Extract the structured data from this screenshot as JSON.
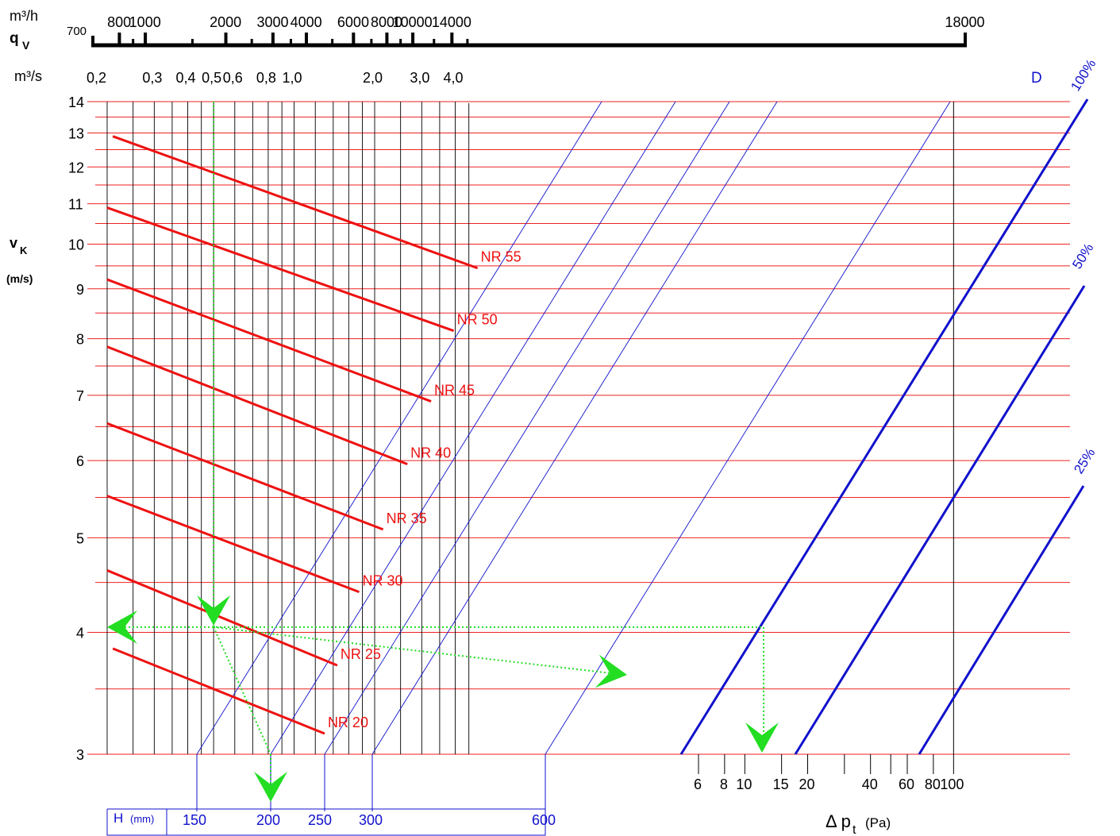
{
  "chart_data": {
    "type": "line",
    "title": "",
    "top_axis": {
      "unit_line1": "m³/h",
      "label": "q",
      "label_sub": "V",
      "unit_line2": "m³/s",
      "m3h_ticks": [
        "700",
        "800",
        "1000",
        "2000",
        "3000",
        "4000",
        "6000",
        "8000",
        "10000",
        "14000",
        "18000"
      ],
      "m3s_ticks": [
        "0,2",
        "0,3",
        "0,4",
        "0,5",
        "0,6",
        "0,8",
        "1,0",
        "2,0",
        "3,0",
        "4,0"
      ]
    },
    "y_axis": {
      "label": "v",
      "label_sub": "K",
      "unit": "(m/s)",
      "scale": "log",
      "range": [
        3,
        14
      ],
      "ticks": [
        "3",
        "4",
        "5",
        "6",
        "7",
        "8",
        "9",
        "10",
        "11",
        "12",
        "13",
        "14"
      ]
    },
    "nr_series": [
      {
        "name": "NR 20",
        "start": [
          0.21,
          3.85
        ],
        "end": [
          1.3,
          3.15
        ]
      },
      {
        "name": "NR 25",
        "start": [
          0.2,
          4.63
        ],
        "end": [
          1.45,
          3.7
        ]
      },
      {
        "name": "NR 30",
        "start": [
          0.2,
          5.52
        ],
        "end": [
          1.75,
          4.4
        ]
      },
      {
        "name": "NR 35",
        "start": [
          0.2,
          6.55
        ],
        "end": [
          2.15,
          5.1
        ]
      },
      {
        "name": "NR 40",
        "start": [
          0.2,
          7.85
        ],
        "end": [
          2.65,
          5.95
        ]
      },
      {
        "name": "NR 45",
        "start": [
          0.2,
          9.2
        ],
        "end": [
          3.25,
          6.9
        ]
      },
      {
        "name": "NR 50",
        "start": [
          0.2,
          10.9
        ],
        "end": [
          3.95,
          8.15
        ]
      },
      {
        "name": "NR 55",
        "start": [
          0.21,
          12.9
        ],
        "end": [
          4.85,
          9.45
        ]
      }
    ],
    "h_scale": {
      "label": "H",
      "unit": "(mm)",
      "ticks": [
        "150",
        "200",
        "250",
        "300",
        "600"
      ]
    },
    "d_scale": {
      "label": "D",
      "lines": [
        "100%",
        "50%",
        "25%"
      ]
    },
    "dp_axis": {
      "label": "Δ p",
      "label_sub": "t",
      "unit": "(Pa)",
      "ticks": [
        "6",
        "8",
        "10",
        "15",
        "20",
        "40",
        "60",
        "80",
        "100"
      ]
    },
    "example": {
      "flow_m3s": 0.5,
      "velocity_ms": 4.05,
      "height_mm": 200,
      "pressure_drop_pa": 10
    },
    "colors": {
      "nr_lines": "#ee1111",
      "grid_h": "#ee2222",
      "grid_v": "#000000",
      "blue": "#1111cc",
      "example_arrow": "#22dd22"
    }
  }
}
